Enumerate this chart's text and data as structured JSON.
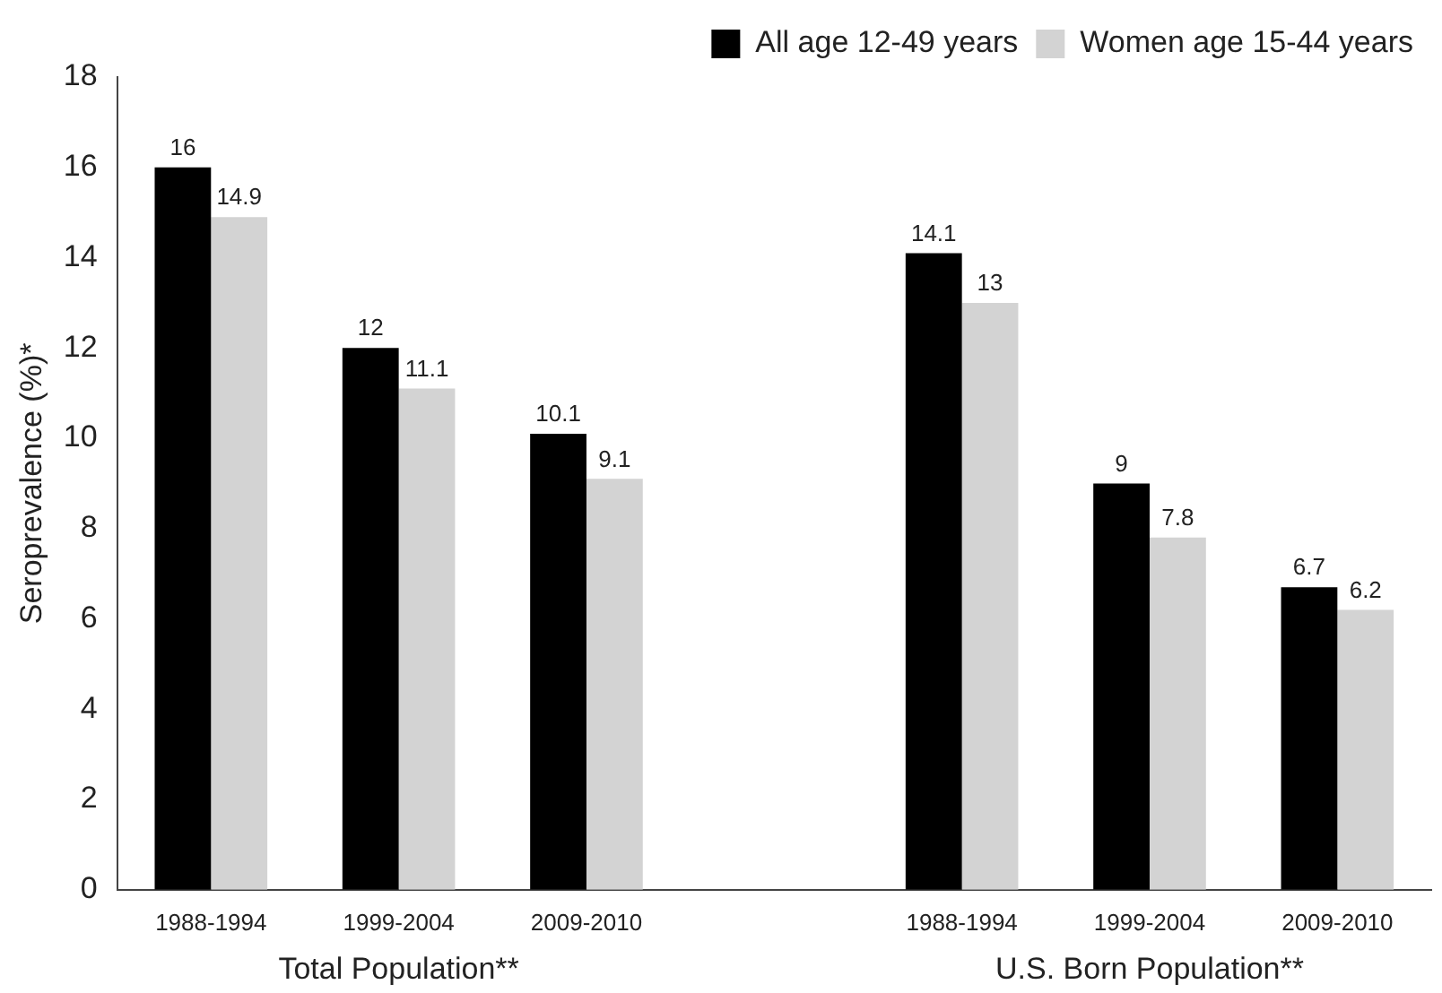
{
  "chart_data": {
    "type": "bar",
    "ylabel": "Seroprevalence (%)*",
    "categories": [
      "1988-1994",
      "1999-2004",
      "2009-2010",
      null,
      "1988-1994",
      "1999-2004",
      "2009-2010"
    ],
    "series": [
      {
        "name": "All age 12-49 years",
        "color": "#000000",
        "values": [
          16,
          12,
          10.1,
          null,
          14.1,
          9,
          6.7
        ]
      },
      {
        "name": "Women age 15-44 years",
        "color": "#d3d3d3",
        "values": [
          14.9,
          11.1,
          9.1,
          null,
          13,
          7.8,
          6.2
        ]
      }
    ],
    "ylim": [
      0,
      18
    ],
    "yticks": [
      0,
      2,
      4,
      6,
      8,
      10,
      12,
      14,
      16,
      18
    ],
    "grid": false,
    "legend": "top right",
    "data_labels": true,
    "annotations": [
      "Total Population**",
      "U.S. Born Population**"
    ]
  }
}
